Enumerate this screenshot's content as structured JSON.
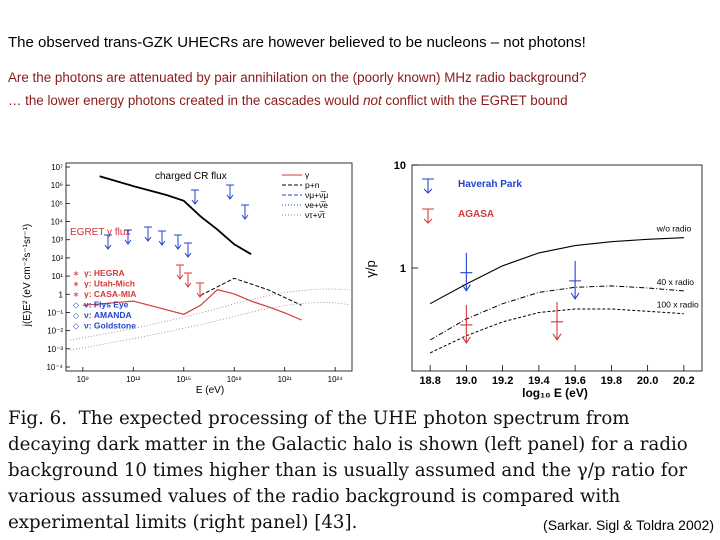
{
  "slide": {
    "title": "The observed trans-GZK UHECRs are however believed to be nucleons – not photons!",
    "subtitle1": "Are the photons are attenuated by pair annihilation on the (poorly known) MHz radio background?",
    "subtitle2_pre": "… the lower energy photons created in the cascades would ",
    "subtitle2_em": "not",
    "subtitle2_post": " conflict with the EGRET bound",
    "caption_figno": "Fig. 6.",
    "caption_text": "The expected processing of the UHE photon spectrum from decaying dark matter in the Galactic halo is shown (left panel) for a radio background 10 times higher than is usually assumed and the γ/p ratio for various assumed values of the radio background is compared with experimental limits (right panel) [43].",
    "credit": "(Sarkar. Sigl & Toldra 2002)"
  },
  "left_panel": {
    "ylabel": "j(E)E² (eV cm⁻²s⁻¹sr⁻¹)",
    "xlabel": "E (eV)",
    "yticks": [
      "10⁷",
      "10⁶",
      "10⁵",
      "10⁴",
      "10³",
      "10²",
      "10¹",
      "1",
      "10⁻¹",
      "10⁻²",
      "10⁻³",
      "10⁻⁴"
    ],
    "xticks": [
      "10⁹",
      "10¹²",
      "10¹⁵",
      "10¹⁸",
      "10²¹",
      "10²⁴"
    ],
    "annot_charged": "charged CR flux",
    "annot_egret": "EGRET γ flux",
    "legend_lines": [
      "γ",
      "p+n",
      "νμ+ν̅μ",
      "νe+ν̅e",
      "ντ+ν̅τ"
    ],
    "legend_markers": [
      "γ: HEGRA",
      "γ: Utah-Mich",
      "γ: CASA-MIA",
      "ν: Flys Eye",
      "ν: AMANDA",
      "ν: Goldstone"
    ],
    "legend_marker_colors": [
      "#d43a3a",
      "#d43a3a",
      "#d43a3a",
      "#2244cc",
      "#2244cc",
      "#2244cc"
    ]
  },
  "right_panel": {
    "ylabel": "γ/p",
    "xlabel": "log₁₀ E (eV)",
    "xticks": [
      "18.8",
      "19.0",
      "19.2",
      "19.4",
      "19.6",
      "19.8",
      "20.0",
      "20.2"
    ],
    "yticks": [
      "10",
      "1"
    ],
    "legend": [
      "Haverah Park",
      "AGASA"
    ],
    "legend_colors": [
      "#2244cc",
      "#d43a3a"
    ],
    "curve_labels": [
      "w/o radio",
      "40 x radio",
      "100 x radio"
    ]
  },
  "chart_data": [
    {
      "type": "line",
      "title": "",
      "xlabel": "E (eV)",
      "ylabel": "j(E)E² (eV cm⁻²s⁻¹sr⁻¹)",
      "xscale": "log",
      "yscale": "log",
      "xlim": [
        100000000.0,
        1e+25
      ],
      "ylim": [
        0.0001,
        10000000.0
      ],
      "series": [
        {
          "name": "charged CR flux",
          "x": [
            10000000000.0,
            1000000000000.0,
            100000000000000.0,
            1000000000000000.0,
            1e+16,
            1e+17,
            1e+18,
            1e+19
          ],
          "y": [
            2000000.0,
            600000.0,
            200000.0,
            100000.0,
            15000.0,
            3000.0,
            500,
            150
          ]
        },
        {
          "name": "γ",
          "x": [
            1000000000.0,
            1000000000000.0,
            1000000000000000.0,
            1e+16,
            1e+17,
            1e+18,
            1e+19,
            1e+20,
            1e+21,
            1e+22
          ],
          "y": [
            0.3,
            0.5,
            0.1,
            0.3,
            2,
            1.2,
            0.5,
            0.25,
            0.12,
            0.05
          ]
        },
        {
          "name": "p+n",
          "x": [
            1e+16,
            1e+18,
            1e+20,
            1e+22
          ],
          "y": [
            1,
            8,
            2,
            0.3
          ]
        }
      ]
    },
    {
      "type": "line",
      "title": "",
      "xlabel": "log₁₀ E (eV)",
      "ylabel": "γ/p",
      "yscale": "log",
      "xlim": [
        18.7,
        20.3
      ],
      "ylim": [
        0.1,
        10
      ],
      "series": [
        {
          "name": "w/o radio",
          "x": [
            18.8,
            19.0,
            19.2,
            19.4,
            19.6,
            19.8,
            20.0,
            20.2
          ],
          "y": [
            0.45,
            0.7,
            1.05,
            1.4,
            1.65,
            1.8,
            1.9,
            1.97
          ]
        },
        {
          "name": "40 x radio",
          "x": [
            18.8,
            19.0,
            19.2,
            19.4,
            19.6,
            19.8,
            20.0,
            20.2
          ],
          "y": [
            0.2,
            0.32,
            0.45,
            0.58,
            0.65,
            0.67,
            0.64,
            0.6
          ]
        },
        {
          "name": "100 x radio",
          "x": [
            18.8,
            19.0,
            19.2,
            19.4,
            19.6,
            19.8,
            20.0,
            20.2
          ],
          "y": [
            0.15,
            0.22,
            0.3,
            0.37,
            0.4,
            0.4,
            0.38,
            0.36
          ]
        }
      ],
      "limits": [
        {
          "name": "Haverah Park",
          "x": [
            19.0,
            19.6
          ],
          "y_upper": [
            0.9,
            0.75
          ]
        },
        {
          "name": "AGASA",
          "x": [
            19.0,
            19.5
          ],
          "y_upper": [
            0.28,
            0.3
          ]
        }
      ]
    }
  ]
}
